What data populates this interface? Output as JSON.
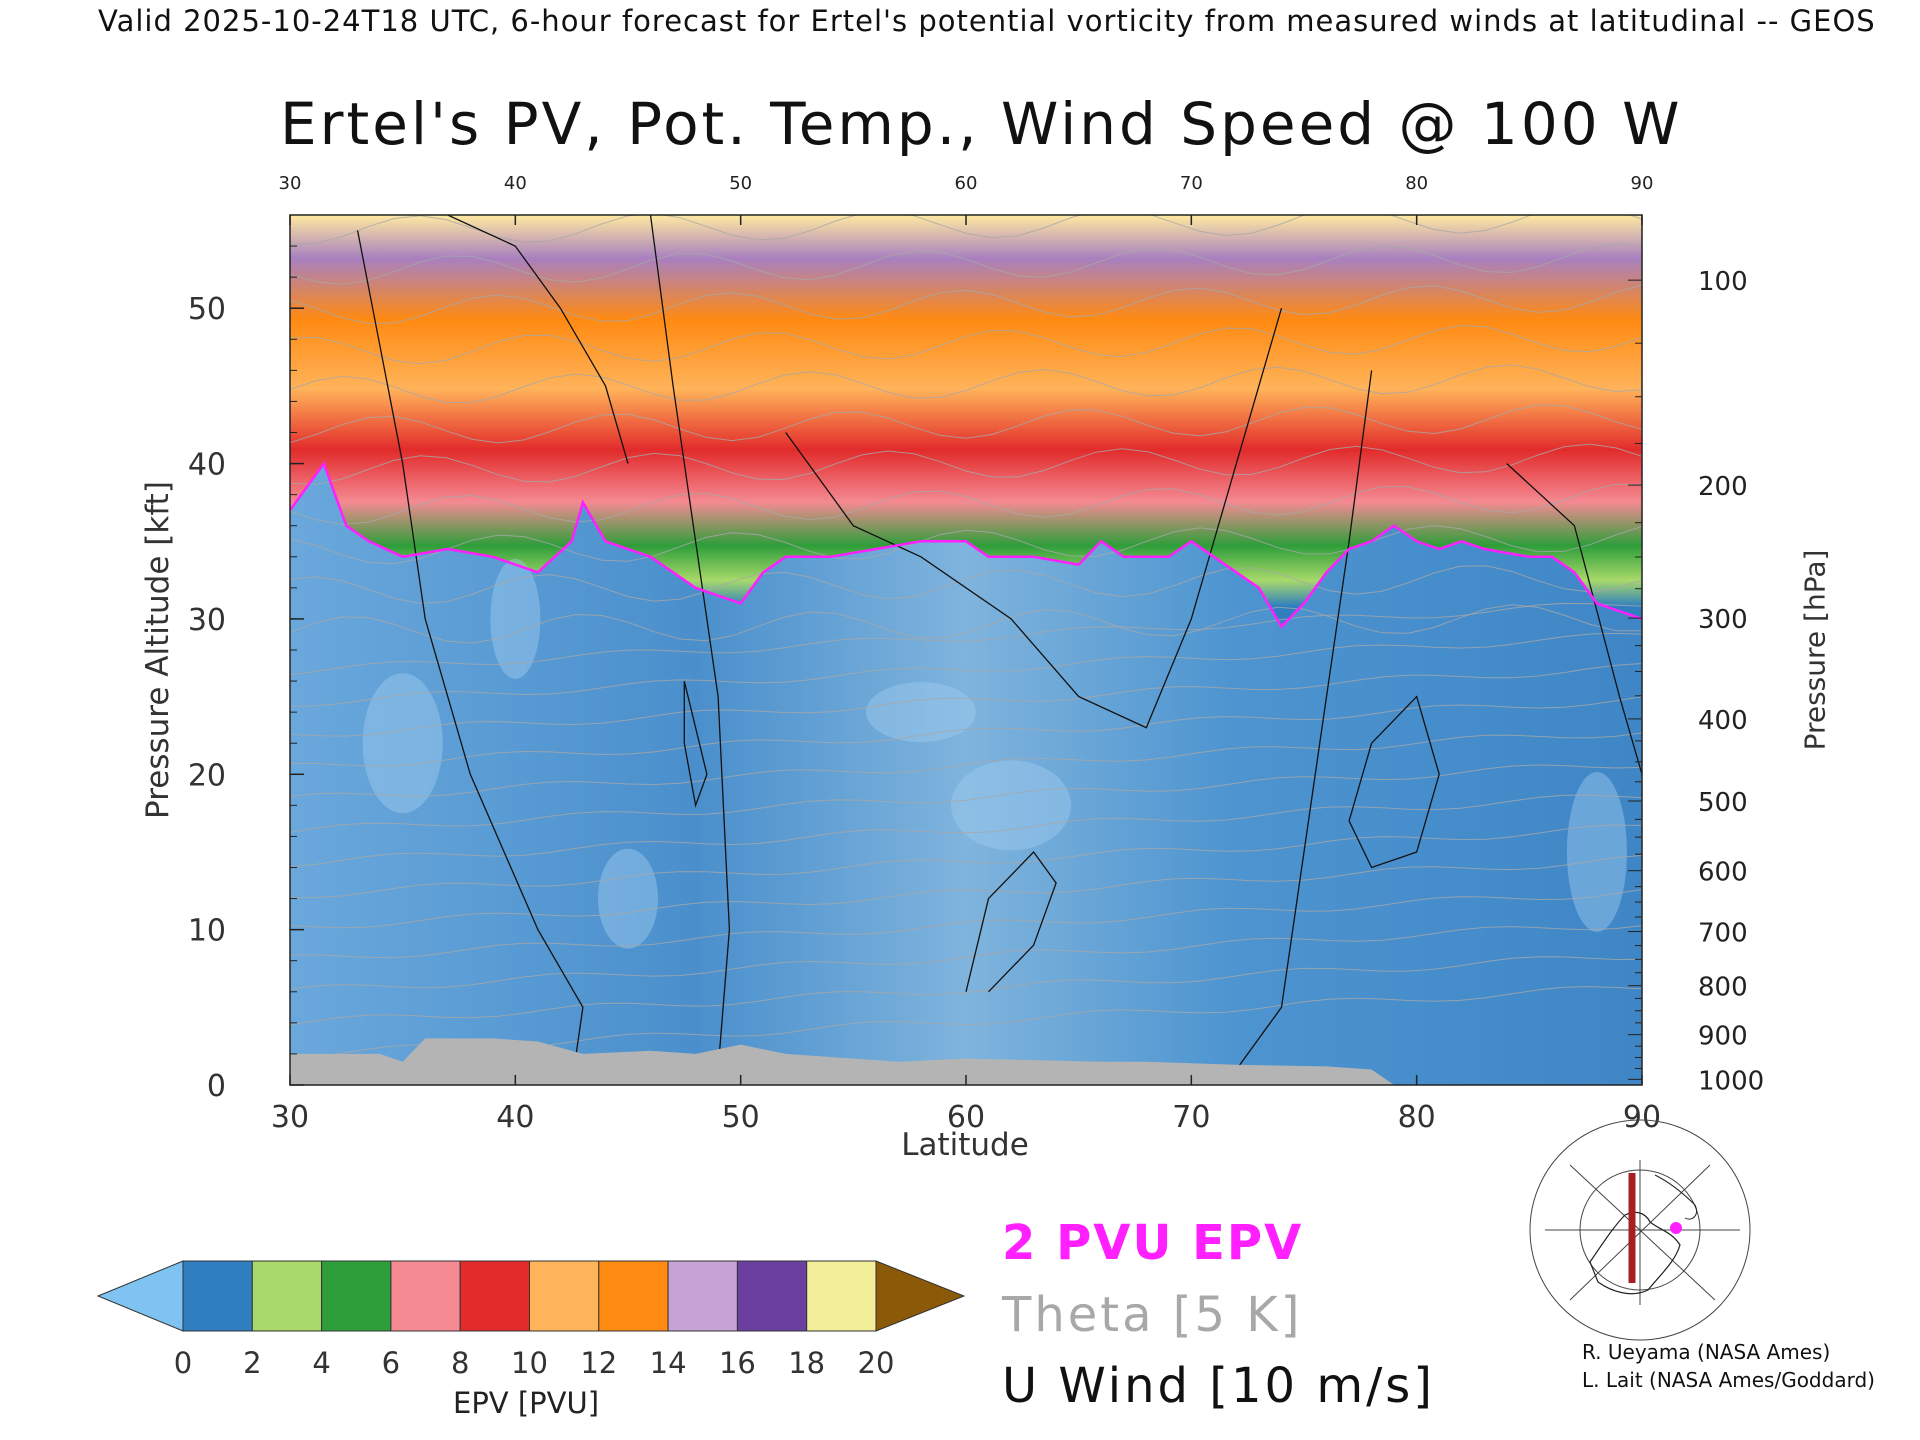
{
  "header": "Valid 2025-10-24T18 UTC, 6-hour forecast for Ertel's potential vorticity from measured winds at latitudinal -- GEOS",
  "chart_data": {
    "type": "heatmap",
    "title": "Ertel's PV, Pot. Temp., Wind Speed @ 100 W",
    "xlabel": "Latitude",
    "ylabel_left": "Pressure Altitude [kft]",
    "ylabel_right": "Pressure [hPa]",
    "xlim": [
      30,
      90
    ],
    "ylim": [
      0,
      56
    ],
    "x_ticks": [
      "30",
      "40",
      "50",
      "60",
      "70",
      "80",
      "90"
    ],
    "top_ticks": [
      "30",
      "40",
      "50",
      "60",
      "70",
      "80",
      "90"
    ],
    "y_ticks": [
      "0",
      "10",
      "20",
      "30",
      "40",
      "50"
    ],
    "y_tick_values": [
      0,
      10,
      20,
      30,
      40,
      50
    ],
    "pressure_ticks": [
      "100",
      "200",
      "300",
      "400",
      "500",
      "600",
      "700",
      "800",
      "900",
      "1000"
    ],
    "pressure_values": [
      100,
      200,
      300,
      400,
      500,
      600,
      700,
      800,
      900,
      1000
    ],
    "colorbar": {
      "label": "EPV [PVU]",
      "ticks": [
        "0",
        "2",
        "4",
        "6",
        "8",
        "10",
        "12",
        "14",
        "16",
        "18",
        "20"
      ],
      "colors": [
        "#2e7ec0",
        "#a8d96a",
        "#2e9e3a",
        "#f48a92",
        "#e22b2b",
        "#ffb35a",
        "#ff8a12",
        "#c6a3d4",
        "#6b3fa0",
        "#f3ee9a"
      ],
      "under_color": "#7ec3f2",
      "over_color": "#8a5a08"
    },
    "tropopause_kft": [
      [
        30,
        37
      ],
      [
        31.5,
        40
      ],
      [
        32.5,
        36
      ],
      [
        33.5,
        35
      ],
      [
        35,
        34
      ],
      [
        37,
        34.5
      ],
      [
        39,
        34
      ],
      [
        41,
        33
      ],
      [
        42.5,
        35
      ],
      [
        43,
        37.5
      ],
      [
        44,
        35
      ],
      [
        46,
        34
      ],
      [
        47,
        33
      ],
      [
        48,
        32
      ],
      [
        50,
        31
      ],
      [
        51,
        33
      ],
      [
        52,
        34
      ],
      [
        54,
        34
      ],
      [
        56,
        34.5
      ],
      [
        58,
        35
      ],
      [
        60,
        35
      ],
      [
        61,
        34
      ],
      [
        63,
        34
      ],
      [
        65,
        33.5
      ],
      [
        66,
        35
      ],
      [
        67,
        34
      ],
      [
        69,
        34
      ],
      [
        70,
        35
      ],
      [
        72,
        33
      ],
      [
        73,
        32
      ],
      [
        74,
        29.5
      ],
      [
        75,
        31
      ],
      [
        76,
        33
      ],
      [
        77,
        34.5
      ],
      [
        78,
        35
      ],
      [
        79,
        36
      ],
      [
        80,
        35
      ],
      [
        81,
        34.5
      ],
      [
        82,
        35
      ],
      [
        83,
        34.5
      ],
      [
        85,
        34
      ],
      [
        86,
        34
      ],
      [
        87,
        33
      ],
      [
        88,
        31
      ],
      [
        90,
        30
      ]
    ],
    "legend": {
      "epv_label": "2 PVU EPV",
      "theta_label": "Theta [5 K]",
      "u_label": "U Wind [10 m/s]"
    },
    "colors": {
      "epv_contour": "#ff1fff",
      "theta_contour": "#a8a8a8",
      "wind_contour": "#111111",
      "terrain": "#b4b4b4"
    }
  },
  "credits": [
    "R. Ueyama (NASA Ames)",
    "L. Lait (NASA Ames/Goddard)"
  ]
}
